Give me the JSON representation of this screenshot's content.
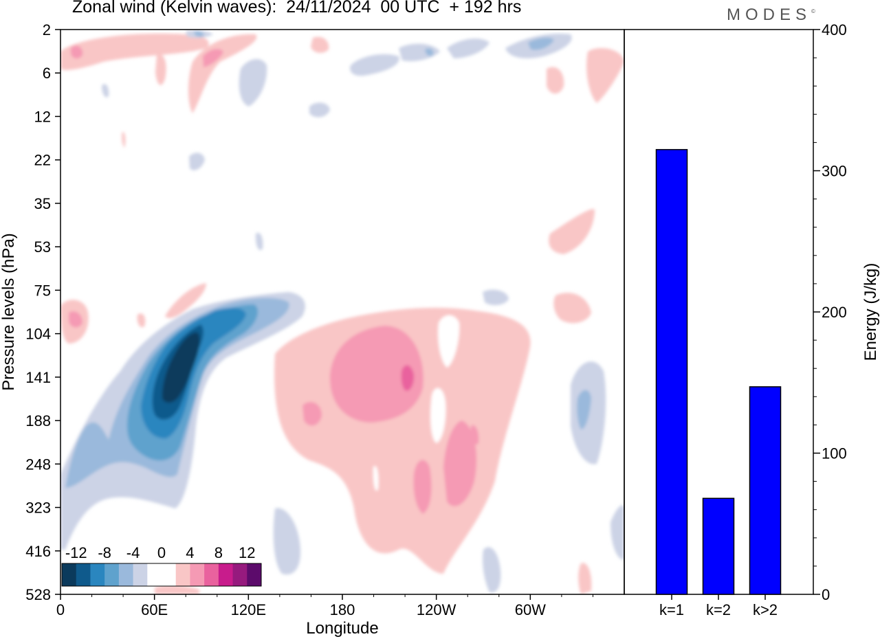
{
  "header": {
    "title": "Zonal wind (Kelvin waves):  24/11/2024  00 UTC  + 192 hrs",
    "brand": "MODES",
    "brand_mark": "©"
  },
  "colors": {
    "axis": "#000000",
    "bar_fill": "#0000ff",
    "colorbar": [
      "#0b3a5c",
      "#0f5a8c",
      "#2a86bf",
      "#5fa2cd",
      "#9ab9dc",
      "#ccd3e6",
      "#ffffff",
      "#ffffff",
      "#f9c6c6",
      "#f59ab4",
      "#e9629e",
      "#c81c8c",
      "#961a7e",
      "#5c0b6b"
    ]
  },
  "chart_data": [
    {
      "type": "heatmap",
      "title": "",
      "xlabel": "Longitude",
      "ylabel": "Pressure levels (hPa)",
      "x_ticks": [
        "0",
        "60E",
        "120E",
        "180",
        "120W",
        "60W"
      ],
      "x_tick_degrees": [
        0,
        60,
        120,
        180,
        240,
        300
      ],
      "x_range_degrees": [
        0,
        360
      ],
      "y_ticks": [
        "2",
        "6",
        "12",
        "22",
        "35",
        "53",
        "75",
        "104",
        "141",
        "188",
        "248",
        "323",
        "416",
        "528"
      ],
      "colorbar": {
        "tick_labels": [
          "-12",
          "-8",
          "-4",
          "0",
          "4",
          "8",
          "12"
        ],
        "bounds": [
          -14,
          -12,
          -10,
          -8,
          -6,
          -4,
          -2,
          0,
          2,
          4,
          6,
          8,
          10,
          12,
          14
        ]
      },
      "features": [
        {
          "name": "easterly maximum",
          "value": -14,
          "lon": 68,
          "level": 141
        },
        {
          "name": "westerly maximum",
          "value": 8,
          "lon": 222,
          "level": 141
        }
      ]
    },
    {
      "type": "bar",
      "title": "",
      "xlabel": "",
      "ylabel": "Energy (J/kg)",
      "categories": [
        "k=1",
        "k=2",
        "k>2"
      ],
      "values": [
        315,
        68,
        147
      ],
      "ylim": [
        0,
        400
      ],
      "y_ticks": [
        "0",
        "100",
        "200",
        "300",
        "400"
      ]
    }
  ]
}
